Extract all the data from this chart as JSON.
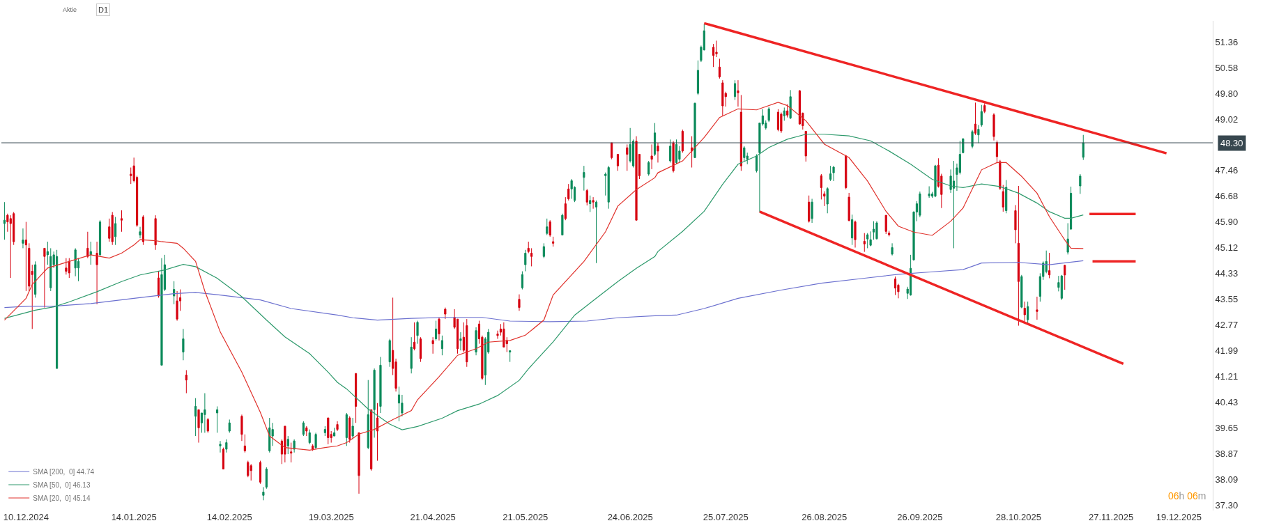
{
  "chart_data": {
    "type": "candlestick",
    "x": [
      "2024-12-03",
      "2024-12-04",
      "2024-12-05",
      "2024-12-06",
      "2024-12-09",
      "2024-12-10",
      "2024-12-11",
      "2024-12-12",
      "2024-12-13",
      "2024-12-16",
      "2024-12-17",
      "2024-12-18",
      "2024-12-19",
      "2024-12-20",
      "2024-12-23",
      "2024-12-24",
      "2024-12-26",
      "2024-12-27",
      "2024-12-30",
      "2024-12-31",
      "2025-01-02",
      "2025-01-03",
      "2025-01-06",
      "2025-01-07",
      "2025-01-08",
      "2025-01-10",
      "2025-01-13",
      "2025-01-14",
      "2025-01-15",
      "2025-01-16",
      "2025-01-17",
      "2025-01-21",
      "2025-01-22",
      "2025-01-23",
      "2025-01-24",
      "2025-01-27",
      "2025-01-28",
      "2025-01-29",
      "2025-01-30",
      "2025-01-31",
      "2025-02-03",
      "2025-02-04",
      "2025-02-05",
      "2025-02-06",
      "2025-02-07",
      "2025-02-10",
      "2025-02-11",
      "2025-02-12",
      "2025-02-13",
      "2025-02-14",
      "2025-02-18",
      "2025-02-19",
      "2025-02-20",
      "2025-02-21",
      "2025-02-24",
      "2025-02-25",
      "2025-02-26",
      "2025-02-27",
      "2025-02-28",
      "2025-03-03",
      "2025-03-04",
      "2025-03-05",
      "2025-03-06",
      "2025-03-07",
      "2025-03-10",
      "2025-03-11",
      "2025-03-12",
      "2025-03-13",
      "2025-03-14",
      "2025-03-17",
      "2025-03-18",
      "2025-03-19",
      "2025-03-20",
      "2025-03-21",
      "2025-03-24",
      "2025-03-25",
      "2025-03-26",
      "2025-03-27",
      "2025-03-28",
      "2025-03-31",
      "2025-04-01",
      "2025-04-02",
      "2025-04-03",
      "2025-04-04",
      "2025-04-07",
      "2025-04-08",
      "2025-04-09",
      "2025-04-10",
      "2025-04-11",
      "2025-04-14",
      "2025-04-15",
      "2025-04-16",
      "2025-04-17",
      "2025-04-21",
      "2025-04-22",
      "2025-04-23",
      "2025-04-24",
      "2025-04-25",
      "2025-04-28",
      "2025-04-29",
      "2025-04-30",
      "2025-05-01",
      "2025-05-02",
      "2025-05-05",
      "2025-05-06",
      "2025-05-07",
      "2025-05-08",
      "2025-05-09",
      "2025-05-12",
      "2025-05-13",
      "2025-05-14",
      "2025-05-15",
      "2025-05-16",
      "2025-05-19",
      "2025-05-20",
      "2025-05-21",
      "2025-05-22",
      "2025-05-23",
      "2025-05-27",
      "2025-05-28",
      "2025-05-29",
      "2025-05-30",
      "2025-06-02",
      "2025-06-03",
      "2025-06-04",
      "2025-06-05",
      "2025-06-06",
      "2025-06-09",
      "2025-06-10",
      "2025-06-11",
      "2025-06-12",
      "2025-06-13",
      "2025-06-16",
      "2025-06-17",
      "2025-06-18",
      "2025-06-20",
      "2025-06-23",
      "2025-06-24",
      "2025-06-25",
      "2025-06-26",
      "2025-06-27",
      "2025-06-30",
      "2025-07-01",
      "2025-07-02",
      "2025-07-03",
      "2025-07-07",
      "2025-07-08",
      "2025-07-09",
      "2025-07-10",
      "2025-07-11",
      "2025-07-14",
      "2025-07-15",
      "2025-07-16",
      "2025-07-17",
      "2025-07-18",
      "2025-07-21",
      "2025-07-22",
      "2025-07-23",
      "2025-07-24",
      "2025-07-25",
      "2025-07-28",
      "2025-07-29",
      "2025-07-30",
      "2025-07-31",
      "2025-08-01",
      "2025-08-04",
      "2025-08-05",
      "2025-08-06",
      "2025-08-07",
      "2025-08-08",
      "2025-08-11",
      "2025-08-12",
      "2025-08-13",
      "2025-08-14",
      "2025-08-15",
      "2025-08-18",
      "2025-08-19",
      "2025-08-20",
      "2025-08-21",
      "2025-08-22",
      "2025-08-25",
      "2025-08-26",
      "2025-08-27",
      "2025-08-28",
      "2025-08-29",
      "2025-09-02",
      "2025-09-03",
      "2025-09-04",
      "2025-09-05",
      "2025-09-08",
      "2025-09-09",
      "2025-09-10",
      "2025-09-11",
      "2025-09-12",
      "2025-09-15",
      "2025-09-16",
      "2025-09-17",
      "2025-09-18",
      "2025-09-19",
      "2025-09-22",
      "2025-09-23",
      "2025-09-24",
      "2025-09-25",
      "2025-09-26",
      "2025-09-29",
      "2025-09-30",
      "2025-10-01",
      "2025-10-02",
      "2025-10-03",
      "2025-10-06",
      "2025-10-07",
      "2025-10-08",
      "2025-10-09",
      "2025-10-10",
      "2025-10-13",
      "2025-10-14",
      "2025-10-15",
      "2025-10-16",
      "2025-10-17",
      "2025-10-20",
      "2025-10-21",
      "2025-10-22",
      "2025-10-23",
      "2025-10-24",
      "2025-10-27",
      "2025-10-28",
      "2025-10-29",
      "2025-10-30",
      "2025-10-31",
      "2025-11-03",
      "2025-11-04",
      "2025-11-05",
      "2025-11-06",
      "2025-11-07",
      "2025-11-10",
      "2025-11-11",
      "2025-11-12",
      "2025-11-13",
      "2025-11-14",
      "2025-11-17",
      "2025-11-18"
    ],
    "ohlc": [
      [
        45.85,
        46.5,
        45.36,
        45.95
      ],
      [
        46.1,
        46.15,
        45.6,
        45.9
      ],
      [
        46.0,
        46.1,
        44.2,
        45.85
      ],
      [
        46.15,
        46.2,
        45.2,
        45.3
      ],
      [
        45.25,
        45.7,
        45.1,
        45.35
      ],
      [
        45.35,
        45.9,
        43.8,
        45.2
      ],
      [
        45.1,
        45.25,
        43.8,
        43.95
      ],
      [
        44.4,
        44.6,
        42.65,
        44.3
      ],
      [
        43.7,
        44.7,
        43.6,
        44.6
      ],
      [
        45.1,
        45.1,
        43.3,
        44.85
      ],
      [
        44.9,
        45.3,
        44.6,
        45.0
      ],
      [
        43.9,
        45.1,
        43.8,
        44.85
      ],
      [
        44.6,
        45.0,
        44.5,
        44.9
      ],
      [
        41.45,
        45.05,
        41.45,
        44.85
      ],
      [
        44.5,
        44.8,
        44.3,
        44.4
      ],
      [
        44.7,
        44.8,
        44.2,
        44.35
      ],
      [
        44.5,
        45.1,
        44.25,
        45.05
      ],
      [
        44.5,
        44.8,
        44.1,
        44.7
      ],
      [
        45.1,
        45.6,
        44.8,
        44.85
      ],
      [
        44.9,
        45.3,
        44.6,
        45.0
      ],
      [
        44.95,
        45.3,
        43.4,
        44.6
      ],
      [
        44.9,
        45.95,
        44.85,
        45.9
      ],
      [
        45.75,
        46.0,
        45.3,
        45.4
      ],
      [
        46.1,
        46.2,
        45.2,
        45.3
      ],
      [
        45.45,
        46.05,
        45.2,
        45.85
      ],
      [
        46.0,
        46.25,
        45.6,
        45.95
      ],
      [
        47.35,
        47.55,
        47.05,
        47.3
      ],
      [
        47.6,
        47.85,
        47.1,
        47.15
      ],
      [
        47.25,
        47.3,
        45.75,
        45.8
      ],
      [
        45.5,
        45.75,
        45.4,
        45.6
      ],
      [
        46.05,
        46.1,
        45.2,
        45.3
      ],
      [
        46.0,
        46.1,
        45.05,
        45.2
      ],
      [
        44.2,
        44.4,
        43.6,
        43.65
      ],
      [
        41.55,
        44.8,
        41.55,
        44.3
      ],
      [
        43.85,
        44.9,
        43.8,
        44.6
      ],
      [
        43.65,
        44.1,
        43.4,
        43.85
      ],
      [
        43.5,
        43.8,
        42.9,
        42.95
      ],
      [
        43.6,
        43.85,
        43.2,
        43.5
      ],
      [
        41.95,
        42.65,
        41.7,
        42.35
      ],
      [
        41.25,
        41.4,
        40.7,
        41.1
      ],
      [
        40.0,
        40.55,
        39.4,
        40.3
      ],
      [
        40.2,
        40.2,
        39.2,
        39.65
      ],
      [
        39.8,
        40.1,
        39.5,
        40.1
      ],
      [
        40.05,
        40.7,
        39.5,
        40.2
      ],
      [
        39.9,
        39.95,
        39.5,
        39.55
      ],
      [
        40.1,
        40.3,
        39.5,
        40.2
      ],
      [
        39.1,
        39.25,
        38.9,
        39.15
      ],
      [
        39.0,
        39.05,
        38.4,
        38.4
      ],
      [
        39.0,
        39.3,
        38.9,
        39.2
      ],
      [
        39.55,
        39.9,
        39.5,
        39.8
      ],
      [
        40.0,
        40.05,
        39.25,
        39.45
      ],
      [
        39.1,
        39.45,
        38.9,
        38.95
      ],
      [
        38.6,
        38.65,
        38.15,
        38.2
      ],
      [
        38.5,
        38.55,
        38.05,
        38.35
      ],
      [
        38.6,
        38.65,
        37.95,
        38.0
      ],
      [
        37.6,
        37.85,
        37.45,
        37.7
      ],
      [
        37.85,
        38.45,
        37.8,
        38.4
      ],
      [
        38.95,
        39.95,
        38.9,
        39.65
      ],
      [
        39.4,
        39.8,
        39.1,
        39.6
      ],
      [
        39.25,
        39.3,
        38.55,
        38.85
      ],
      [
        39.7,
        39.7,
        38.6,
        38.85
      ],
      [
        39.1,
        39.4,
        38.85,
        39.3
      ],
      [
        38.92,
        39.2,
        38.6,
        38.88
      ],
      [
        39.0,
        39.3,
        38.9,
        39.25
      ],
      [
        39.45,
        39.85,
        39.4,
        39.8
      ],
      [
        39.65,
        39.7,
        39.4,
        39.55
      ],
      [
        39.2,
        39.6,
        39.15,
        39.5
      ],
      [
        39.1,
        39.15,
        38.95,
        39.0
      ],
      [
        39.05,
        39.5,
        39.0,
        39.45
      ],
      [
        39.5,
        39.7,
        39.4,
        39.6
      ],
      [
        39.95,
        39.95,
        39.15,
        39.35
      ],
      [
        39.45,
        39.55,
        39.2,
        39.35
      ],
      [
        39.4,
        39.65,
        39.4,
        39.5
      ],
      [
        39.75,
        39.85,
        39.55,
        39.6
      ],
      [
        39.35,
        40.1,
        39.1,
        40.05
      ],
      [
        39.95,
        40.0,
        39.2,
        39.3
      ],
      [
        39.4,
        39.95,
        39.3,
        39.7
      ],
      [
        41.3,
        41.3,
        39.8,
        40.3
      ],
      [
        39.5,
        39.5,
        37.65,
        38.2
      ],
      [
        39.05,
        41.1,
        39.0,
        40.05
      ],
      [
        40.2,
        40.2,
        38.35,
        38.4
      ],
      [
        40.2,
        41.45,
        39.35,
        41.4
      ],
      [
        39.95,
        40.4,
        38.65,
        39.55
      ],
      [
        40.3,
        41.8,
        40.1,
        41.55
      ],
      [
        41.65,
        42.35,
        41.5,
        42.3
      ],
      [
        42.0,
        43.6,
        41.25,
        41.45
      ],
      [
        41.65,
        41.75,
        40.75,
        40.85
      ],
      [
        40.4,
        40.9,
        39.85,
        40.65
      ],
      [
        40.1,
        40.65,
        40.0,
        40.4
      ],
      [
        41.45,
        42.4,
        41.3,
        42.1
      ],
      [
        42.25,
        42.85,
        42.0,
        42.05
      ],
      [
        42.45,
        42.9,
        42.2,
        42.85
      ],
      [
        42.35,
        42.4,
        41.65,
        41.75
      ],
      [
        42.3,
        42.4,
        41.9,
        42.2
      ],
      [
        42.35,
        42.9,
        42.3,
        42.65
      ],
      [
        42.95,
        43.0,
        42.3,
        42.5
      ],
      [
        42.05,
        42.45,
        41.85,
        42.3
      ],
      [
        43.25,
        43.3,
        42.95,
        43.1
      ],
      [
        43.0,
        43.25,
        42.65,
        42.7
      ],
      [
        42.95,
        42.95,
        41.9,
        42.05
      ],
      [
        42.3,
        42.55,
        42.0,
        42.35
      ],
      [
        42.4,
        42.85,
        41.95,
        42.0
      ],
      [
        42.75,
        42.95,
        41.5,
        41.65
      ],
      [
        41.95,
        42.7,
        41.85,
        42.6
      ],
      [
        42.8,
        42.9,
        42.2,
        42.35
      ],
      [
        42.4,
        42.45,
        41.1,
        41.15
      ],
      [
        41.25,
        42.4,
        40.95,
        42.35
      ],
      [
        41.95,
        42.65,
        41.9,
        42.55
      ],
      [
        42.5,
        42.6,
        42.35,
        42.45
      ],
      [
        42.65,
        42.8,
        42.45,
        42.55
      ],
      [
        42.65,
        42.85,
        42.1,
        42.1
      ],
      [
        42.3,
        42.4,
        41.95,
        42.2
      ],
      [
        41.95,
        42.0,
        41.65,
        41.99
      ],
      [
        43.55,
        43.7,
        43.2,
        43.3
      ],
      [
        43.9,
        44.4,
        43.85,
        44.3
      ],
      [
        44.6,
        45.05,
        44.4,
        44.95
      ],
      [
        45.1,
        45.3,
        44.95,
        45.0
      ],
      [
        44.95,
        45.1,
        44.55,
        44.85
      ],
      [
        44.85,
        45.25,
        44.8,
        45.15
      ],
      [
        45.55,
        46.0,
        45.5,
        45.75
      ],
      [
        45.9,
        45.95,
        45.45,
        45.5
      ],
      [
        45.3,
        45.45,
        45.15,
        45.25
      ],
      [
        45.5,
        46.15,
        45.5,
        46.1
      ],
      [
        46.45,
        46.65,
        45.95,
        46.0
      ],
      [
        46.9,
        47.05,
        46.55,
        46.6
      ],
      [
        46.9,
        47.2,
        46.6,
        47.15
      ],
      [
        46.55,
        46.98,
        46.5,
        46.95
      ],
      [
        47.25,
        47.6,
        46.85,
        47.4
      ],
      [
        46.85,
        46.9,
        46.4,
        46.5
      ],
      [
        46.45,
        46.7,
        46.2,
        46.55
      ],
      [
        46.55,
        46.65,
        46.3,
        46.5
      ],
      [
        46.35,
        46.55,
        44.65,
        46.5
      ],
      [
        47.3,
        47.4,
        46.7,
        47.35
      ],
      [
        46.5,
        47.6,
        46.3,
        47.55
      ],
      [
        48.3,
        48.3,
        47.8,
        47.85
      ],
      [
        47.95,
        47.95,
        47.45,
        47.6
      ],
      [
        48.15,
        48.25,
        47.45,
        47.95
      ],
      [
        47.75,
        48.75,
        47.7,
        48.25
      ],
      [
        47.6,
        48.4,
        47.55,
        48.35
      ],
      [
        48.35,
        48.5,
        45.95,
        45.95
      ],
      [
        47.95,
        47.95,
        47.2,
        47.3
      ],
      [
        47.35,
        47.75,
        47.3,
        47.7
      ],
      [
        47.9,
        48.25,
        47.5,
        47.8
      ],
      [
        47.95,
        48.9,
        47.9,
        48.6
      ],
      [
        48.2,
        48.3,
        47.7,
        48.05
      ],
      [
        47.75,
        48.4,
        47.7,
        48.2
      ],
      [
        48.3,
        48.35,
        47.4,
        47.45
      ],
      [
        47.7,
        48.4,
        47.65,
        48.25
      ],
      [
        47.8,
        48.2,
        47.7,
        48.05
      ],
      [
        48.65,
        48.7,
        48.0,
        48.05
      ],
      [
        48.15,
        48.5,
        47.55,
        48.05
      ],
      [
        47.85,
        49.52,
        47.85,
        49.5
      ],
      [
        49.8,
        50.8,
        49.75,
        50.5
      ],
      [
        50.8,
        51.25,
        50.75,
        51.2
      ],
      [
        51.12,
        51.9,
        51.1,
        51.7
      ],
      [
        51.2,
        51.3,
        50.6,
        50.95
      ],
      [
        51.05,
        51.4,
        50.9,
        51.0
      ],
      [
        50.6,
        50.85,
        50.25,
        50.3
      ],
      [
        50.12,
        50.2,
        49.12,
        49.42
      ],
      [
        49.8,
        49.85,
        49.4,
        49.7
      ],
      [
        49.7,
        50.2,
        49.6,
        50.1
      ],
      [
        49.88,
        50.2,
        49.4,
        49.82
      ],
      [
        49.23,
        49.75,
        47.45,
        47.6
      ],
      [
        47.85,
        48.2,
        47.75,
        48.15
      ],
      [
        47.8,
        48.0,
        47.65,
        47.9
      ],
      [
        47.45,
        47.95,
        47.4,
        47.9
      ],
      [
        48.0,
        48.9,
        46.2,
        48.9
      ],
      [
        48.87,
        49.32,
        48.82,
        49.12
      ],
      [
        48.75,
        48.98,
        48.7,
        48.9
      ],
      [
        48.98,
        49.38,
        48.93,
        49.33
      ],
      [
        49.23,
        49.32,
        48.65,
        48.7
      ],
      [
        49.17,
        49.22,
        48.6,
        48.66
      ],
      [
        49.12,
        49.37,
        48.97,
        49.27
      ],
      [
        49.27,
        49.47,
        49.07,
        49.14
      ],
      [
        49.05,
        49.9,
        49.02,
        49.7
      ],
      [
        49.88,
        49.9,
        48.85,
        48.87
      ],
      [
        49.2,
        49.22,
        48.7,
        48.82
      ],
      [
        48.65,
        48.66,
        47.73,
        47.9
      ],
      [
        46.5,
        46.7,
        45.88,
        45.92
      ],
      [
        46.0,
        46.6,
        45.87,
        46.5
      ],
      [
        47.3,
        47.35,
        46.58,
        46.94
      ],
      [
        46.75,
        46.83,
        46.38,
        46.68
      ],
      [
        46.44,
        46.95,
        46.16,
        46.91
      ],
      [
        47.19,
        47.6,
        47.14,
        47.36
      ],
      [
        47.39,
        47.6,
        47.14,
        47.56
      ],
      [
        47.9,
        47.93,
        46.89,
        46.94
      ],
      [
        46.65,
        46.78,
        45.92,
        45.94
      ],
      [
        45.41,
        46.12,
        45.2,
        45.97
      ],
      [
        45.9,
        45.94,
        45.12,
        45.36
      ],
      [
        45.31,
        45.56,
        44.99,
        45.23
      ],
      [
        45.38,
        45.56,
        45.1,
        45.51
      ],
      [
        45.19,
        45.61,
        45.16,
        45.36
      ],
      [
        45.59,
        45.92,
        45.36,
        45.68
      ],
      [
        45.39,
        45.92,
        45.36,
        45.87
      ],
      [
        46.1,
        46.1,
        45.53,
        45.61
      ],
      [
        45.56,
        45.63,
        45.46,
        45.51
      ],
      [
        44.92,
        45.25,
        44.88,
        45.12
      ],
      [
        44.17,
        44.24,
        43.68,
        43.89
      ],
      [
        43.98,
        44.02,
        43.58,
        43.78
      ],
      [
        43.73,
        43.93,
        43.56,
        43.86
      ],
      [
        43.68,
        44.9,
        43.66,
        44.49
      ],
      [
        44.75,
        46.22,
        44.72,
        46.2
      ],
      [
        46.2,
        46.53,
        45.92,
        46.45
      ],
      [
        46.1,
        46.82,
        46.04,
        46.75
      ],
      [
        46.69,
        46.98,
        46.63,
        46.75
      ],
      [
        46.68,
        46.81,
        46.63,
        46.75
      ],
      [
        46.68,
        47.63,
        46.65,
        47.6
      ],
      [
        47.62,
        47.83,
        46.94,
        46.98
      ],
      [
        47.29,
        47.36,
        46.32,
        46.73
      ],
      [
        46.88,
        47.49,
        46.78,
        47.29
      ],
      [
        46.92,
        47.75,
        45.1,
        47.14
      ],
      [
        47.34,
        47.67,
        46.84,
        47.54
      ],
      [
        47.4,
        48.36,
        47.34,
        47.95
      ],
      [
        48.0,
        48.44,
        47.98,
        48.42
      ],
      [
        48.19,
        48.69,
        48.13,
        48.64
      ],
      [
        48.87,
        49.52,
        48.54,
        48.59
      ],
      [
        48.54,
        48.84,
        48.29,
        48.71
      ],
      [
        48.84,
        49.45,
        48.79,
        49.25
      ],
      [
        49.43,
        49.5,
        49.2,
        49.25
      ],
      [
        49.15,
        49.2,
        48.37,
        48.49
      ],
      [
        48.31,
        48.37,
        47.68,
        47.88
      ],
      [
        47.73,
        47.78,
        46.87,
        46.92
      ],
      [
        46.82,
        47.02,
        46.21,
        46.35
      ],
      [
        46.24,
        47.17,
        46.16,
        46.95
      ],
      [
        46.24,
        46.41,
        45.25,
        45.66
      ],
      [
        45.25,
        46.99,
        42.75,
        44.09
      ],
      [
        43.31,
        44.29,
        43.28,
        44.24
      ],
      [
        43.28,
        43.48,
        42.88,
        43.08
      ],
      [
        42.93,
        43.48,
        42.81,
        43.33
      ],
      [
        43.23,
        43.63,
        42.93,
        43.18
      ],
      [
        43.64,
        44.34,
        43.48,
        44.24
      ],
      [
        44.24,
        44.7,
        44.14,
        44.65
      ],
      [
        44.39,
        45.03,
        44.34,
        44.7
      ],
      [
        44.42,
        44.96,
        44.19,
        44.29
      ],
      [
        43.91,
        44.26,
        43.79,
        44.06
      ],
      [
        43.58,
        44.29,
        43.53,
        44.26
      ],
      [
        44.58,
        44.6,
        43.84,
        44.29
      ],
      [
        44.98,
        45.86,
        44.91,
        45.38
      ],
      [
        45.68,
        46.97,
        45.66,
        46.77
      ],
      [
        46.99,
        47.35,
        46.75,
        47.29
      ],
      [
        47.86,
        48.54,
        47.78,
        48.3
      ]
    ],
    "series": [
      {
        "type": "line",
        "name": "SMA [200,  0] 44.74",
        "color": "#6b70cf",
        "x": [
          "2024-12-03",
          "2024-12-11",
          "2024-12-19",
          "2024-12-31",
          "2025-01-14",
          "2025-01-27",
          "2025-02-03",
          "2025-02-11",
          "2025-02-24",
          "2025-03-06",
          "2025-03-21",
          "2025-03-26",
          "2025-04-03",
          "2025-04-14",
          "2025-04-25",
          "2025-05-07",
          "2025-05-16",
          "2025-05-29",
          "2025-06-10",
          "2025-06-20",
          "2025-07-02",
          "2025-07-09",
          "2025-07-18",
          "2025-07-29",
          "2025-08-12",
          "2025-08-25",
          "2025-09-08",
          "2025-09-19",
          "2025-10-01",
          "2025-10-10",
          "2025-10-16",
          "2025-10-28",
          "2025-11-07",
          "2025-11-18"
        ],
        "values": [
          43.3,
          43.34,
          43.34,
          43.42,
          43.58,
          43.72,
          43.76,
          43.68,
          43.53,
          43.27,
          43.07,
          42.99,
          42.92,
          42.97,
          43.0,
          43.0,
          42.89,
          42.87,
          42.89,
          42.99,
          43.05,
          43.07,
          43.27,
          43.58,
          43.83,
          44.04,
          44.19,
          44.31,
          44.39,
          44.45,
          44.65,
          44.67,
          44.6,
          44.72
        ]
      },
      {
        "type": "line",
        "name": "SMA [50,  0] 46.13",
        "color": "#2e9a6c",
        "x": [
          "2024-12-03",
          "2024-12-13",
          "2024-12-19",
          "2024-12-24",
          "2025-01-02",
          "2025-01-10",
          "2025-01-16",
          "2025-01-24",
          "2025-01-30",
          "2025-02-03",
          "2025-02-10",
          "2025-02-18",
          "2025-02-26",
          "2025-03-04",
          "2025-03-12",
          "2025-03-18",
          "2025-03-21",
          "2025-03-24",
          "2025-03-31",
          "2025-04-07",
          "2025-04-11",
          "2025-04-16",
          "2025-04-24",
          "2025-04-29",
          "2025-05-06",
          "2025-05-12",
          "2025-05-19",
          "2025-05-22",
          "2025-05-30",
          "2025-06-06",
          "2025-06-13",
          "2025-06-20",
          "2025-06-26",
          "2025-07-02",
          "2025-07-03",
          "2025-07-11",
          "2025-07-18",
          "2025-07-24",
          "2025-07-29",
          "2025-08-04",
          "2025-08-08",
          "2025-08-14",
          "2025-08-20",
          "2025-08-26",
          "2025-09-03",
          "2025-09-10",
          "2025-09-16",
          "2025-09-23",
          "2025-09-30",
          "2025-10-06",
          "2025-10-10",
          "2025-10-16",
          "2025-10-22",
          "2025-10-28",
          "2025-11-03",
          "2025-11-07",
          "2025-11-12",
          "2025-11-14",
          "2025-11-18"
        ],
        "values": [
          42.97,
          43.22,
          43.32,
          43.47,
          43.78,
          44.09,
          44.29,
          44.44,
          44.61,
          44.54,
          44.19,
          43.63,
          42.92,
          42.41,
          41.9,
          41.34,
          41.03,
          40.83,
          40.22,
          39.76,
          39.59,
          39.69,
          39.94,
          40.17,
          40.37,
          40.63,
          41.09,
          41.44,
          42.26,
          43.07,
          43.58,
          44.09,
          44.49,
          44.85,
          45.0,
          45.61,
          46.22,
          47.04,
          47.65,
          47.9,
          48.16,
          48.41,
          48.56,
          48.56,
          48.51,
          48.36,
          48.05,
          47.65,
          47.19,
          46.99,
          46.94,
          47.05,
          46.97,
          46.77,
          46.47,
          46.21,
          46.01,
          46.01,
          46.11
        ]
      },
      {
        "type": "line",
        "name": "SMA [20,  0] 45.14",
        "color": "#e0322c",
        "x": [
          "2024-12-03",
          "2024-12-10",
          "2024-12-12",
          "2024-12-17",
          "2024-12-24",
          "2024-12-31",
          "2025-01-06",
          "2025-01-10",
          "2025-01-14",
          "2025-01-16",
          "2025-01-21",
          "2025-01-23",
          "2025-01-28",
          "2025-01-30",
          "2025-02-03",
          "2025-02-06",
          "2025-02-11",
          "2025-02-18",
          "2025-02-24",
          "2025-02-27",
          "2025-03-04",
          "2025-03-12",
          "2025-03-17",
          "2025-03-21",
          "2025-03-24",
          "2025-03-28",
          "2025-04-02",
          "2025-04-08",
          "2025-04-14",
          "2025-04-16",
          "2025-04-23",
          "2025-04-29",
          "2025-05-05",
          "2025-05-09",
          "2025-05-16",
          "2025-05-21",
          "2025-05-27",
          "2025-05-30",
          "2025-06-09",
          "2025-06-16",
          "2025-06-20",
          "2025-06-26",
          "2025-07-02",
          "2025-07-03",
          "2025-07-11",
          "2025-07-18",
          "2025-07-23",
          "2025-07-29",
          "2025-08-04",
          "2025-08-11",
          "2025-08-14",
          "2025-08-20",
          "2025-08-26",
          "2025-09-03",
          "2025-09-09",
          "2025-09-15",
          "2025-09-19",
          "2025-09-24",
          "2025-09-30",
          "2025-10-06",
          "2025-10-10",
          "2025-10-16",
          "2025-10-21",
          "2025-10-24",
          "2025-10-29",
          "2025-11-03",
          "2025-11-07",
          "2025-11-12",
          "2025-11-14",
          "2025-11-18"
        ],
        "values": [
          42.92,
          43.58,
          44.0,
          44.5,
          44.7,
          44.9,
          44.8,
          44.95,
          45.2,
          45.36,
          45.33,
          45.3,
          45.25,
          45.1,
          44.7,
          43.8,
          42.56,
          41.34,
          40.12,
          39.4,
          39.05,
          38.97,
          39.05,
          39.1,
          39.2,
          39.46,
          39.6,
          39.9,
          40.17,
          40.5,
          41.2,
          41.85,
          42.05,
          42.25,
          42.3,
          42.46,
          42.92,
          43.68,
          44.7,
          45.6,
          46.38,
          46.88,
          47.24,
          47.39,
          47.75,
          48.46,
          49.07,
          49.33,
          49.3,
          49.53,
          49.43,
          48.97,
          48.26,
          47.85,
          47.14,
          46.22,
          45.77,
          45.59,
          45.49,
          45.92,
          46.32,
          47.48,
          47.7,
          47.7,
          47.28,
          46.77,
          46.06,
          45.35,
          45.1,
          45.09
        ]
      },
      {
        "type": "line",
        "color": "#ee2424",
        "x": [
          "2025-07-18",
          "2025-12-15"
        ],
        "values": [
          51.93,
          47.98
        ]
      },
      {
        "type": "line",
        "color": "#ee2424",
        "x": [
          "2025-08-05",
          "2025-12-01"
        ],
        "values": [
          46.21,
          41.59
        ]
      },
      {
        "type": "line",
        "color": "#ee2424",
        "x": [
          "2025-11-20",
          "2025-12-05"
        ],
        "values": [
          46.14,
          46.14
        ]
      },
      {
        "type": "line",
        "color": "#ee2424",
        "x": [
          "2025-11-21",
          "2025-12-05"
        ],
        "values": [
          44.7,
          44.7
        ]
      }
    ],
    "ref_lines": [
      {
        "axis": "y",
        "value": 48.3,
        "label": "48.30",
        "color": "#37474f"
      }
    ],
    "xlim": [
      "2024-12-02",
      "2025-12-30"
    ],
    "xticks": [
      {
        "value": "2024-12-10",
        "label": "10.12.2024"
      },
      {
        "value": "2025-01-14",
        "label": "14.01.2025"
      },
      {
        "value": "2025-02-14",
        "label": "14.02.2025"
      },
      {
        "value": "2025-03-19",
        "label": "19.03.2025"
      },
      {
        "value": "2025-04-21",
        "label": "21.04.2025"
      },
      {
        "value": "2025-05-21",
        "label": "21.05.2025"
      },
      {
        "value": "2025-06-24",
        "label": "24.06.2025"
      },
      {
        "value": "2025-07-25",
        "label": "25.07.2025"
      },
      {
        "value": "2025-08-26",
        "label": "26.08.2025"
      },
      {
        "value": "2025-09-26",
        "label": "26.09.2025"
      },
      {
        "value": "2025-10-28",
        "label": "28.10.2025"
      },
      {
        "value": "2025-11-27",
        "label": "27.11.2025"
      },
      {
        "value": "2025-12-19",
        "label": "19.12.2025"
      }
    ],
    "ylim": [
      37.14,
      52.0
    ],
    "yticks": [
      51.36,
      50.58,
      {
        "value": 49.8,
        "label": "49.80"
      },
      49.02,
      47.46,
      46.68,
      {
        "value": 45.9,
        "label": "45.90"
      },
      45.12,
      44.33,
      43.55,
      42.77,
      41.99,
      41.21,
      40.43,
      39.65,
      38.87,
      38.09,
      {
        "value": 37.3,
        "label": "37.30"
      }
    ],
    "legend": "bottom left",
    "annotations": [
      "Aktie",
      "D1",
      "06h 06m"
    ]
  }
}
